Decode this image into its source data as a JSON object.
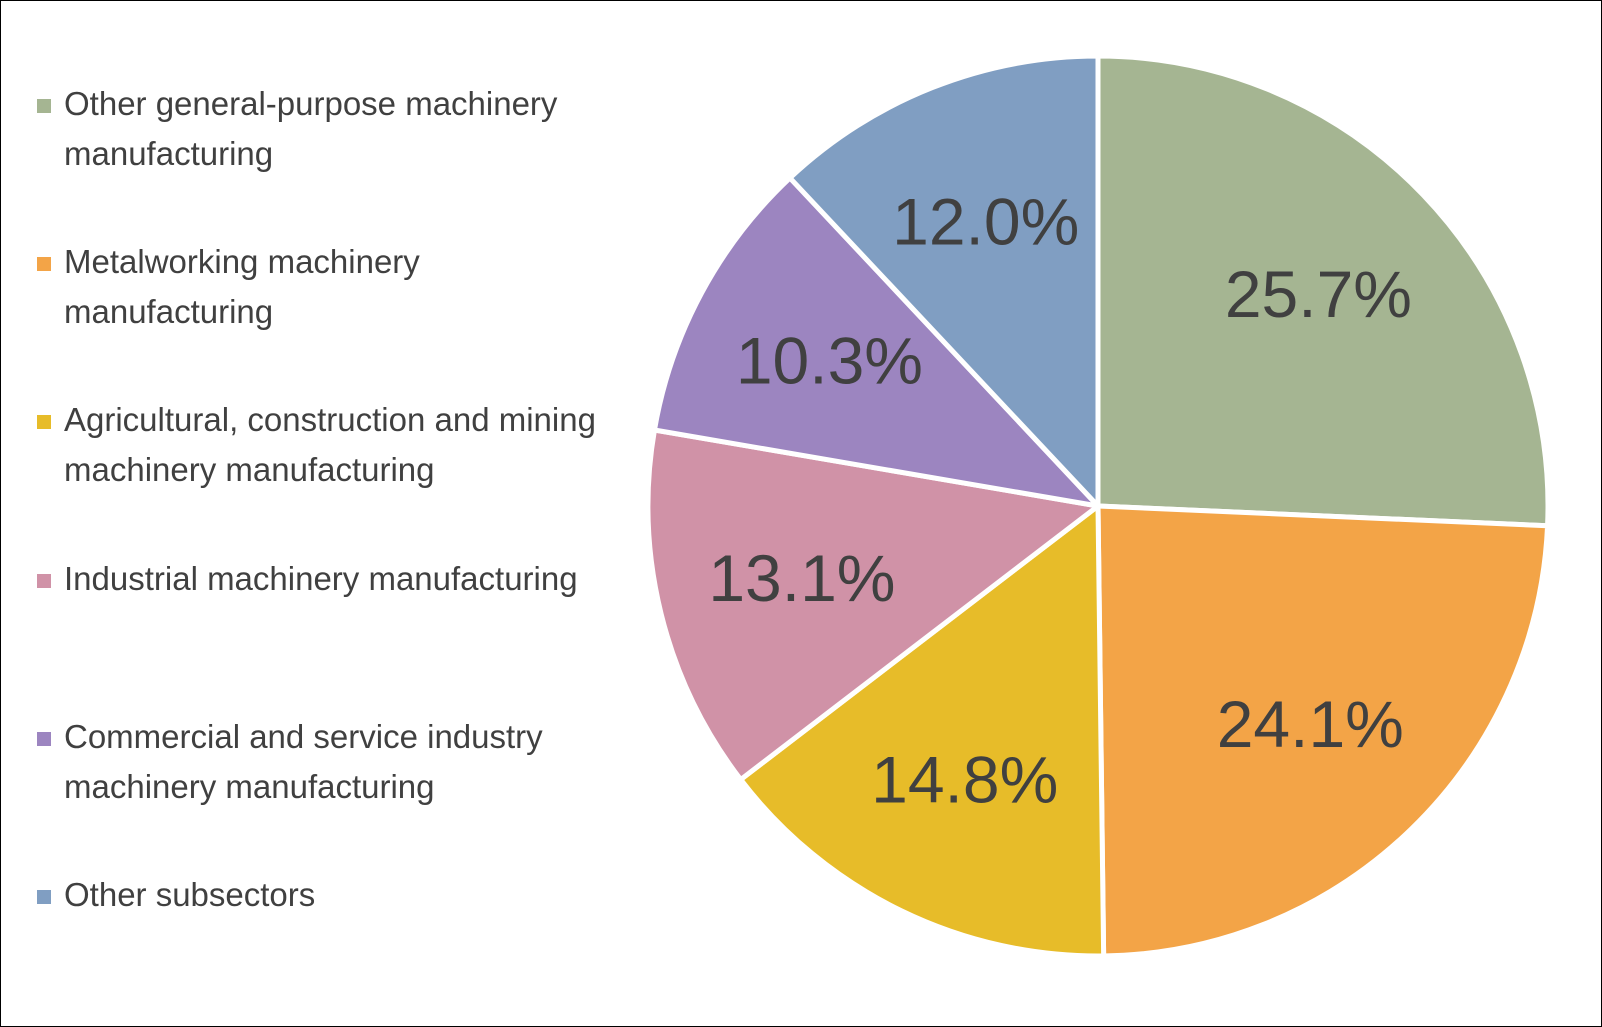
{
  "chart_data": {
    "type": "pie",
    "title": "",
    "legend_position": "left",
    "unit": "%",
    "slices": [
      {
        "label": "Other general-purpose machinery manufacturing",
        "value": 25.7,
        "display": "25.7%",
        "color": "#a5b592"
      },
      {
        "label": "Metalworking machinery manufacturing",
        "value": 24.1,
        "display": "24.1%",
        "color": "#f3a447"
      },
      {
        "label": "Agricultural, construction and mining machinery manufacturing",
        "value": 14.8,
        "display": "14.8%",
        "color": "#e7bc29"
      },
      {
        "label": "Industrial machinery manufacturing",
        "value": 13.1,
        "display": "13.1%",
        "color": "#d092a7"
      },
      {
        "label": "Commercial and service industry machinery manufacturing",
        "value": 10.3,
        "display": "10.3%",
        "color": "#9c85c0"
      },
      {
        "label": "Other subsectors",
        "value": 12.0,
        "display": "12.0%",
        "color": "#809ec2"
      }
    ],
    "start_angle_deg": 0,
    "direction": "clockwise",
    "slice_border_color": "#ffffff"
  }
}
